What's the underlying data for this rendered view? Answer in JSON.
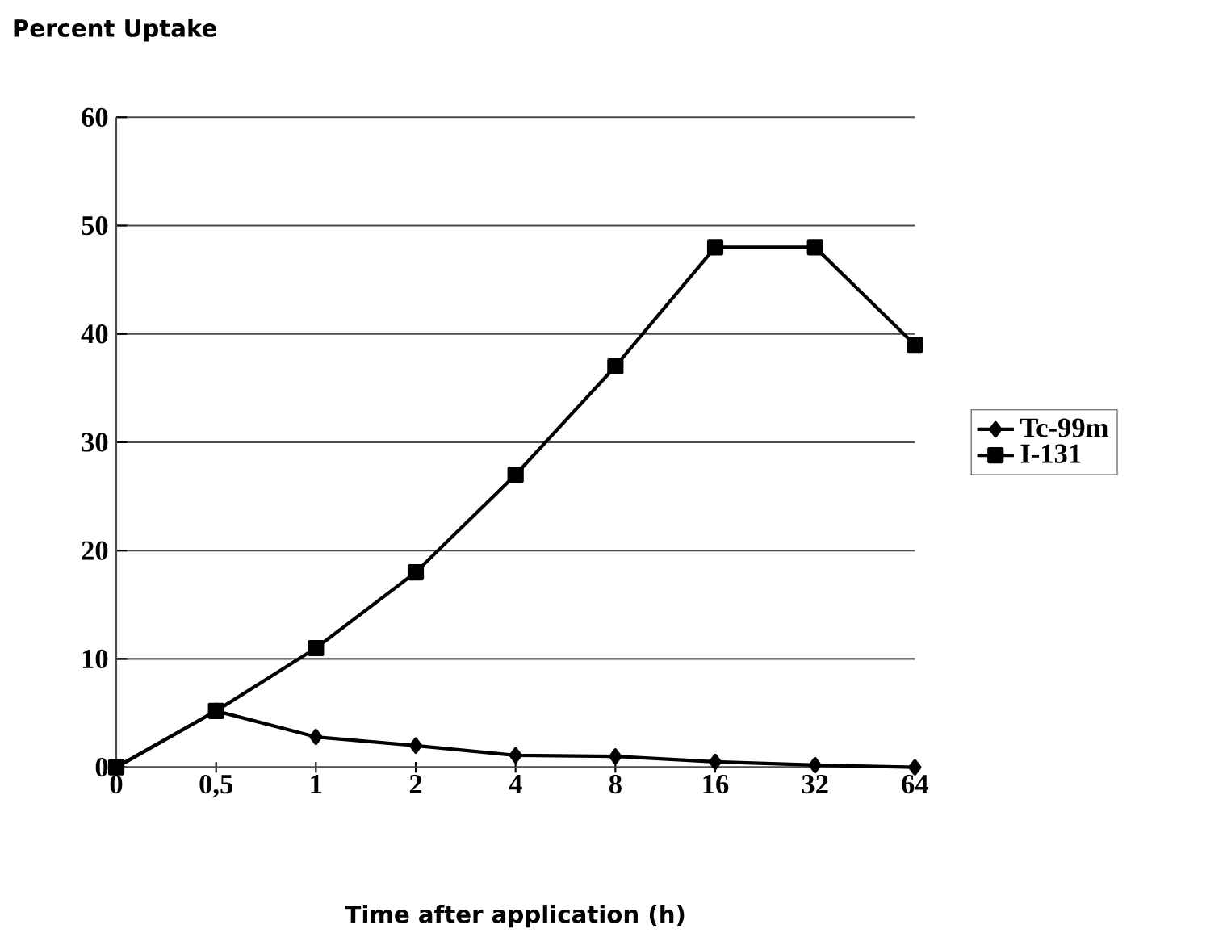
{
  "chart_data": {
    "type": "line",
    "ylabel": "Percent Uptake",
    "xlabel": "Time after application (h)",
    "categories": [
      "0",
      "0,5",
      "1",
      "2",
      "4",
      "8",
      "16",
      "32",
      "64"
    ],
    "series": [
      {
        "name": "Tc-99m",
        "color": "#000000",
        "marker": "diamond",
        "values": [
          0,
          5.2,
          2.8,
          2,
          1.1,
          1,
          0.5,
          0.2,
          0
        ]
      },
      {
        "name": "I-131",
        "color": "#000000",
        "marker": "square",
        "values": [
          0,
          5.2,
          11,
          18,
          27,
          37,
          48,
          48,
          39
        ]
      }
    ],
    "ylim": [
      0,
      60
    ],
    "yticks": [
      0,
      10,
      20,
      30,
      40,
      50,
      60
    ],
    "grid": "y",
    "legend": "right",
    "line_style": "solid"
  }
}
